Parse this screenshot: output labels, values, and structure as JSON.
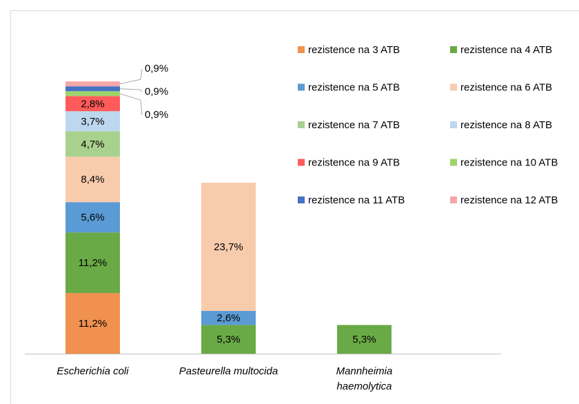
{
  "chart_data": {
    "type": "stacked_bar",
    "categories": [
      "Escherichia coli",
      "Pasteurella multocida",
      "Mannheimia haemolytica"
    ],
    "series": [
      {
        "name": "rezistence na 3 ATB",
        "color": "#f0914f",
        "values": [
          11.2,
          null,
          null
        ],
        "value_labels": [
          "11,2%",
          null,
          null
        ]
      },
      {
        "name": "rezistence na 4 ATB",
        "color": "#6aaa46",
        "values": [
          11.2,
          5.3,
          5.3
        ],
        "value_labels": [
          "11,2%",
          "5,3%",
          "5,3%"
        ]
      },
      {
        "name": "rezistence na 5 ATB",
        "color": "#5b9bd5",
        "values": [
          5.6,
          2.6,
          null
        ],
        "value_labels": [
          "5,6%",
          "2,6%",
          null
        ]
      },
      {
        "name": "rezistence na 6 ATB",
        "color": "#f8cbad",
        "values": [
          8.4,
          23.7,
          null
        ],
        "value_labels": [
          "8,4%",
          "23,7%",
          null
        ]
      },
      {
        "name": "rezistence na 7 ATB",
        "color": "#a9d18e",
        "values": [
          4.7,
          null,
          null
        ],
        "value_labels": [
          "4,7%",
          null,
          null
        ]
      },
      {
        "name": "rezistence na 8 ATB",
        "color": "#bdd7ee",
        "values": [
          3.7,
          null,
          null
        ],
        "value_labels": [
          "3,7%",
          null,
          null
        ]
      },
      {
        "name": "rezistence na 9 ATB",
        "color": "#ff5b5b",
        "values": [
          2.8,
          null,
          null
        ],
        "value_labels": [
          "2,8%",
          null,
          null
        ]
      },
      {
        "name": "rezistence na 10 ATB",
        "color": "#9ed36a",
        "values": [
          0.9,
          null,
          null
        ],
        "value_labels": [
          "0,9%",
          null,
          null
        ]
      },
      {
        "name": "rezistence na 11 ATB",
        "color": "#4472c4",
        "values": [
          0.9,
          null,
          null
        ],
        "value_labels": [
          "0,9%",
          null,
          null
        ]
      },
      {
        "name": "rezistence na 12 ATB",
        "color": "#f4a7a9",
        "values": [
          0.9,
          null,
          null
        ],
        "value_labels": [
          "0,9%",
          null,
          null
        ]
      }
    ]
  }
}
